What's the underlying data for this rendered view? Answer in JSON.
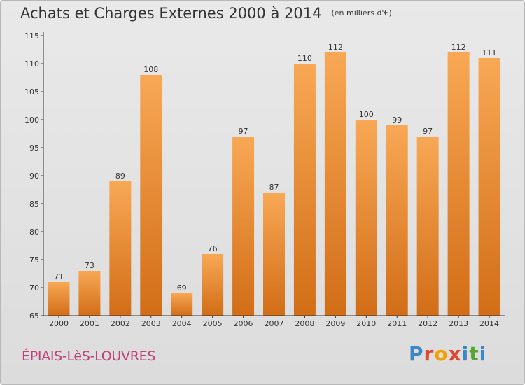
{
  "header": {
    "title": "Achats et Charges Externes 2000 à 2014",
    "subtitle": "(en milliers d'€)"
  },
  "footer": {
    "commune": "ÉPIAIS-LèS-LOUVRES",
    "logo_letters": [
      "P",
      "r",
      "o",
      "x",
      "i",
      "t",
      "i"
    ],
    "logo_colors": [
      "#3a86c8",
      "#e0472f",
      "#f2a100",
      "#e0472f",
      "#3a86c8",
      "#56a832",
      "#3a86c8"
    ]
  },
  "colors": {
    "bar_light": "#f8a855",
    "bar_dark": "#d26d17",
    "axis": "#333333",
    "gridline": "#d0d0d0"
  },
  "chart_data": {
    "type": "bar",
    "title": "Achats et Charges Externes 2000 à 2014",
    "subtitle": "(en milliers d'€)",
    "categories": [
      "2000",
      "2001",
      "2002",
      "2003",
      "2004",
      "2005",
      "2006",
      "2007",
      "2008",
      "2009",
      "2010",
      "2011",
      "2012",
      "2013",
      "2014"
    ],
    "values": [
      71,
      73,
      89,
      108,
      69,
      76,
      97,
      87,
      110,
      112,
      100,
      99,
      97,
      112,
      111
    ],
    "xlabel": "",
    "ylabel": "",
    "ylim": [
      65,
      115
    ],
    "yticks": [
      65,
      70,
      75,
      80,
      85,
      90,
      95,
      100,
      105,
      110,
      115
    ],
    "grid": false,
    "legend": "none"
  }
}
